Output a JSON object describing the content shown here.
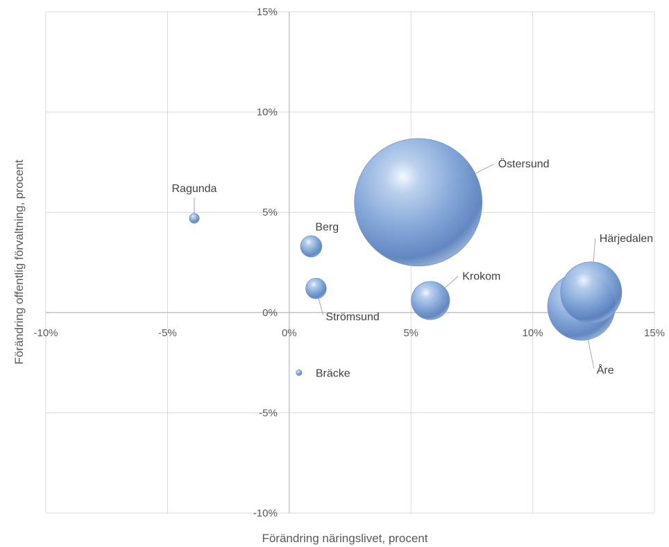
{
  "chart_data": {
    "type": "bubble",
    "xlabel": "Förändring näringslivet, procent",
    "ylabel": "Förändring offentlig förvaltning, procent",
    "xlim": [
      -10,
      15
    ],
    "ylim": [
      -10,
      15
    ],
    "x_ticks": [
      {
        "value": -10,
        "label": "-10%"
      },
      {
        "value": -5,
        "label": "-5%"
      },
      {
        "value": 0,
        "label": "0%"
      },
      {
        "value": 5,
        "label": "5%"
      },
      {
        "value": 10,
        "label": "10%"
      },
      {
        "value": 15,
        "label": "15%"
      }
    ],
    "y_ticks": [
      {
        "value": 15,
        "label": "15%"
      },
      {
        "value": 10,
        "label": "10%"
      },
      {
        "value": 5,
        "label": "5%"
      },
      {
        "value": 0,
        "label": "0%"
      },
      {
        "value": -5,
        "label": "-5%"
      },
      {
        "value": -10,
        "label": "-10%"
      }
    ],
    "grid": true,
    "legend": "none",
    "bubble_color": "#5b86c5",
    "points": [
      {
        "name": "Östersund",
        "x": 5.3,
        "y": 5.5,
        "size": 100
      },
      {
        "name": "Härjedalen",
        "x": 12.4,
        "y": 1.0,
        "size": 23
      },
      {
        "name": "Åre",
        "x": 12.0,
        "y": 0.3,
        "size": 28
      },
      {
        "name": "Krokom",
        "x": 5.8,
        "y": 0.6,
        "size": 9
      },
      {
        "name": "Strömsund",
        "x": 1.1,
        "y": 1.2,
        "size": 2.6
      },
      {
        "name": "Berg",
        "x": 0.9,
        "y": 3.3,
        "size": 2.8
      },
      {
        "name": "Ragunda",
        "x": -3.9,
        "y": 4.7,
        "size": 0.6
      },
      {
        "name": "Bräcke",
        "x": 0.4,
        "y": -3.0,
        "size": 0.2
      }
    ]
  }
}
